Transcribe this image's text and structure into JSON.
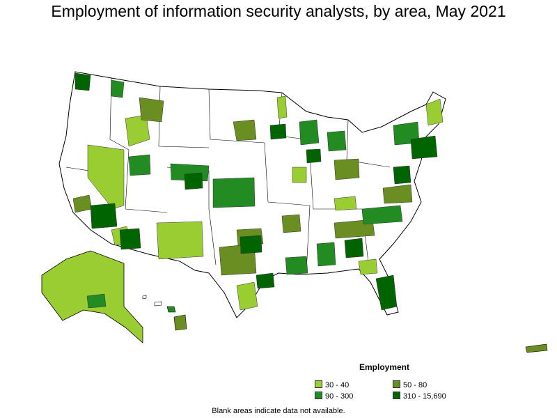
{
  "title": "Employment of information security analysts, by area, May 2021",
  "legend": {
    "title": "Employment",
    "items": [
      {
        "label": "30 - 40",
        "color": "#9ACD32"
      },
      {
        "label": "50 - 80",
        "color": "#6B8E23"
      },
      {
        "label": "90 - 300",
        "color": "#228B22"
      },
      {
        "label": "310 - 15,690",
        "color": "#006400"
      }
    ]
  },
  "footnote": "Blank areas indicate data not available.",
  "colors": {
    "no_data": "#ffffff",
    "border": "#000000"
  }
}
